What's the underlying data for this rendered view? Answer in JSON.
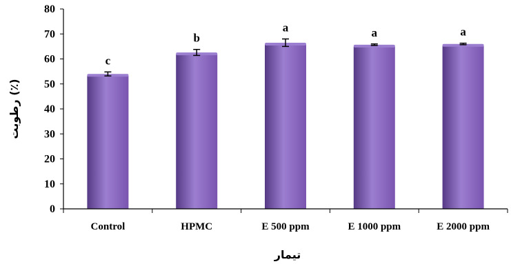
{
  "chart_data": {
    "type": "bar",
    "categories": [
      "Control",
      "HPMC",
      "E 500 ppm",
      "E 1000 ppm",
      "E 2000 ppm"
    ],
    "values": [
      54.0,
      62.6,
      66.5,
      65.7,
      66.0
    ],
    "errors": [
      0.8,
      1.2,
      1.5,
      0.3,
      0.3
    ],
    "significance_letters": [
      "c",
      "b",
      "a",
      "a",
      "a"
    ],
    "xlabel": "تیمار",
    "ylabel": "رطوبت (٪)",
    "ylim": [
      0,
      80
    ],
    "yticks": [
      0,
      10,
      20,
      30,
      40,
      50,
      60,
      70,
      80
    ],
    "grid": false,
    "legend": "none",
    "bar_color": "#7a55b0",
    "bar_color_light": "#9c7ed0",
    "bar_color_dark": "#563a86"
  }
}
